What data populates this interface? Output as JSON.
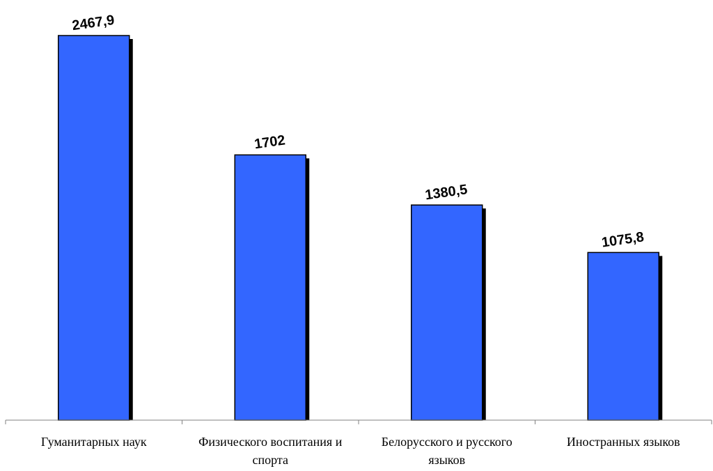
{
  "chart_data": {
    "type": "bar",
    "title": "",
    "xlabel": "",
    "ylabel": "",
    "categories": [
      [
        "Гуманитарных наук"
      ],
      [
        "Физического воспитания и",
        "спорта"
      ],
      [
        "Белорусского и русского",
        "языков"
      ],
      [
        "Иностранных языков"
      ]
    ],
    "values": [
      2467.9,
      1702,
      1380.5,
      1075.8
    ],
    "data_labels": [
      "2467,9",
      "1702",
      "1380,5",
      "1075,8"
    ],
    "ylim": [
      0,
      2600
    ],
    "grid": false,
    "legend": false,
    "bar_color": "#3366ff",
    "shadow_color": "#000000"
  }
}
